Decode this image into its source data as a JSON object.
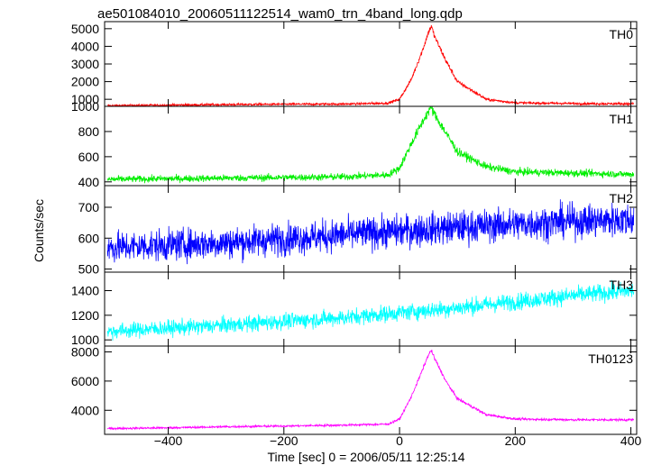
{
  "chart_data": {
    "type": "line",
    "title": "ae501084010_20060511122514_wam0_trn_4band_long.qdp",
    "xlabel": "Time [sec] 0 = 2006/05/11 12:25:14",
    "ylabel": "Counts/sec",
    "xlim": [
      -510,
      410
    ],
    "x_ticks": [
      -400,
      -200,
      0,
      200,
      400
    ],
    "grid": false,
    "series": [
      {
        "name": "TH0",
        "color": "#ff0000",
        "ylim": [
          600,
          5400
        ],
        "y_ticks": [
          1000,
          2000,
          3000,
          4000,
          5000
        ],
        "noise": 35,
        "x": [
          -500,
          -400,
          -300,
          -200,
          -100,
          -20,
          0,
          20,
          40,
          50,
          55,
          60,
          80,
          100,
          150,
          200,
          300,
          400
        ],
        "y": [
          640,
          670,
          700,
          720,
          730,
          780,
          1000,
          2100,
          3800,
          4800,
          5150,
          4600,
          3200,
          2000,
          1000,
          800,
          760,
          740
        ]
      },
      {
        "name": "TH1",
        "color": "#00ee00",
        "ylim": [
          370,
          1000
        ],
        "y_ticks": [
          400,
          600,
          800,
          1000
        ],
        "noise": 15,
        "x": [
          -500,
          -400,
          -300,
          -200,
          -100,
          -20,
          0,
          20,
          40,
          50,
          55,
          60,
          80,
          100,
          150,
          200,
          300,
          400
        ],
        "y": [
          420,
          425,
          430,
          435,
          440,
          455,
          510,
          700,
          880,
          960,
          990,
          940,
          790,
          640,
          520,
          480,
          470,
          460
        ]
      },
      {
        "name": "TH2",
        "color": "#0000ff",
        "ylim": [
          490,
          770
        ],
        "y_ticks": [
          500,
          600,
          700
        ],
        "noise": 28,
        "x": [
          -500,
          -300,
          -100,
          100,
          300,
          400
        ],
        "y": [
          570,
          585,
          610,
          635,
          655,
          660
        ]
      },
      {
        "name": "TH3",
        "color": "#00ffff",
        "ylim": [
          950,
          1550
        ],
        "y_ticks": [
          1000,
          1200,
          1400
        ],
        "noise": 35,
        "x": [
          -500,
          -300,
          -100,
          100,
          300,
          400
        ],
        "y": [
          1070,
          1120,
          1180,
          1260,
          1360,
          1400
        ]
      },
      {
        "name": "TH0123",
        "color": "#ff00ff",
        "ylim": [
          2350,
          8400
        ],
        "y_ticks": [
          4000,
          6000,
          8000
        ],
        "noise": 40,
        "x": [
          -500,
          -400,
          -300,
          -200,
          -100,
          -20,
          0,
          20,
          40,
          50,
          55,
          60,
          80,
          100,
          150,
          200,
          300,
          400
        ],
        "y": [
          2750,
          2800,
          2870,
          2920,
          2980,
          3050,
          3400,
          4900,
          6800,
          7800,
          8100,
          7600,
          6000,
          4800,
          3700,
          3400,
          3350,
          3350
        ]
      }
    ]
  }
}
